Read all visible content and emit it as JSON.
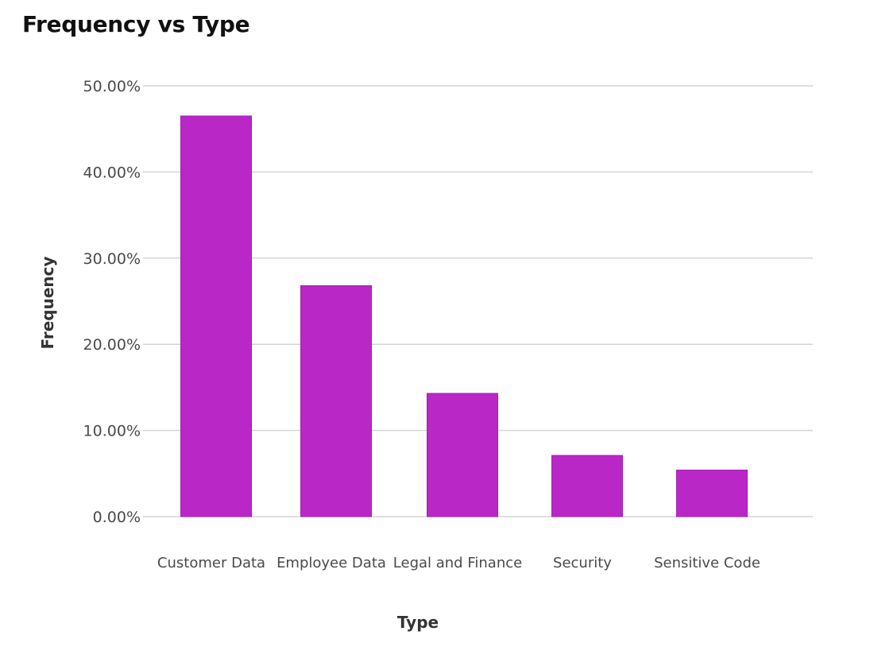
{
  "chart_data": {
    "type": "bar",
    "title": "Frequency vs Type",
    "xlabel": "Type",
    "ylabel": "Frequency",
    "categories": [
      "Customer Data",
      "Employee Data",
      "Legal and Finance",
      "Security",
      "Sensitive Code"
    ],
    "values": [
      46.5,
      26.8,
      14.3,
      7.1,
      5.4
    ],
    "ylim": [
      0,
      50
    ],
    "yticks": [
      0,
      10,
      20,
      30,
      40,
      50
    ],
    "ytick_labels": [
      "0.00%",
      "10.00%",
      "20.00%",
      "30.00%",
      "40.00%",
      "50.00%"
    ],
    "grid": true,
    "legend": "none",
    "bar_color": "#b928c6",
    "bar_edge_color": "#a51cb3"
  }
}
